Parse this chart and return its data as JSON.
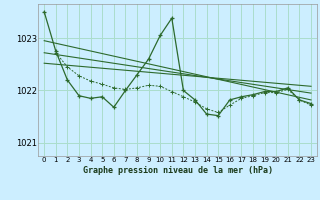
{
  "background_color": "#cceeff",
  "grid_color": "#aaddcc",
  "line_color": "#2d6a2d",
  "title": "Graphe pression niveau de la mer (hPa)",
  "ylim": [
    1020.75,
    1023.65
  ],
  "xlim": [
    -0.5,
    23.5
  ],
  "yticks": [
    1021,
    1022,
    1023
  ],
  "xticks": [
    0,
    1,
    2,
    3,
    4,
    5,
    6,
    7,
    8,
    9,
    10,
    11,
    12,
    13,
    14,
    15,
    16,
    17,
    18,
    19,
    20,
    21,
    22,
    23
  ],
  "main_line_x": [
    0,
    1,
    2,
    3,
    4,
    5,
    6,
    7,
    8,
    9,
    10,
    11,
    12,
    13,
    14,
    15,
    16,
    17,
    18,
    19,
    20,
    21,
    22,
    23
  ],
  "main_line_y": [
    1023.5,
    1022.75,
    1022.2,
    1021.9,
    1021.85,
    1021.88,
    1021.68,
    1022.0,
    1022.3,
    1022.6,
    1023.05,
    1023.38,
    1022.0,
    1021.82,
    1021.55,
    1021.52,
    1021.82,
    1021.88,
    1021.92,
    1021.98,
    1021.98,
    1022.05,
    1021.82,
    1021.75
  ],
  "trend_lines": [
    {
      "x": [
        0,
        23
      ],
      "y": [
        1022.95,
        1021.82
      ]
    },
    {
      "x": [
        0,
        23
      ],
      "y": [
        1022.72,
        1021.95
      ]
    },
    {
      "x": [
        0,
        23
      ],
      "y": [
        1022.52,
        1022.08
      ]
    }
  ],
  "smooth_line_x": [
    1,
    2,
    3,
    4,
    5,
    6,
    7,
    8,
    9,
    10,
    11,
    12,
    13,
    14,
    15,
    16,
    17,
    18,
    19,
    20,
    21,
    22,
    23
  ],
  "smooth_line_y": [
    1022.72,
    1022.45,
    1022.28,
    1022.18,
    1022.12,
    1022.05,
    1022.02,
    1022.05,
    1022.1,
    1022.08,
    1021.98,
    1021.88,
    1021.78,
    1021.65,
    1021.58,
    1021.72,
    1021.85,
    1021.9,
    1021.96,
    1021.96,
    1022.02,
    1021.82,
    1021.72
  ]
}
